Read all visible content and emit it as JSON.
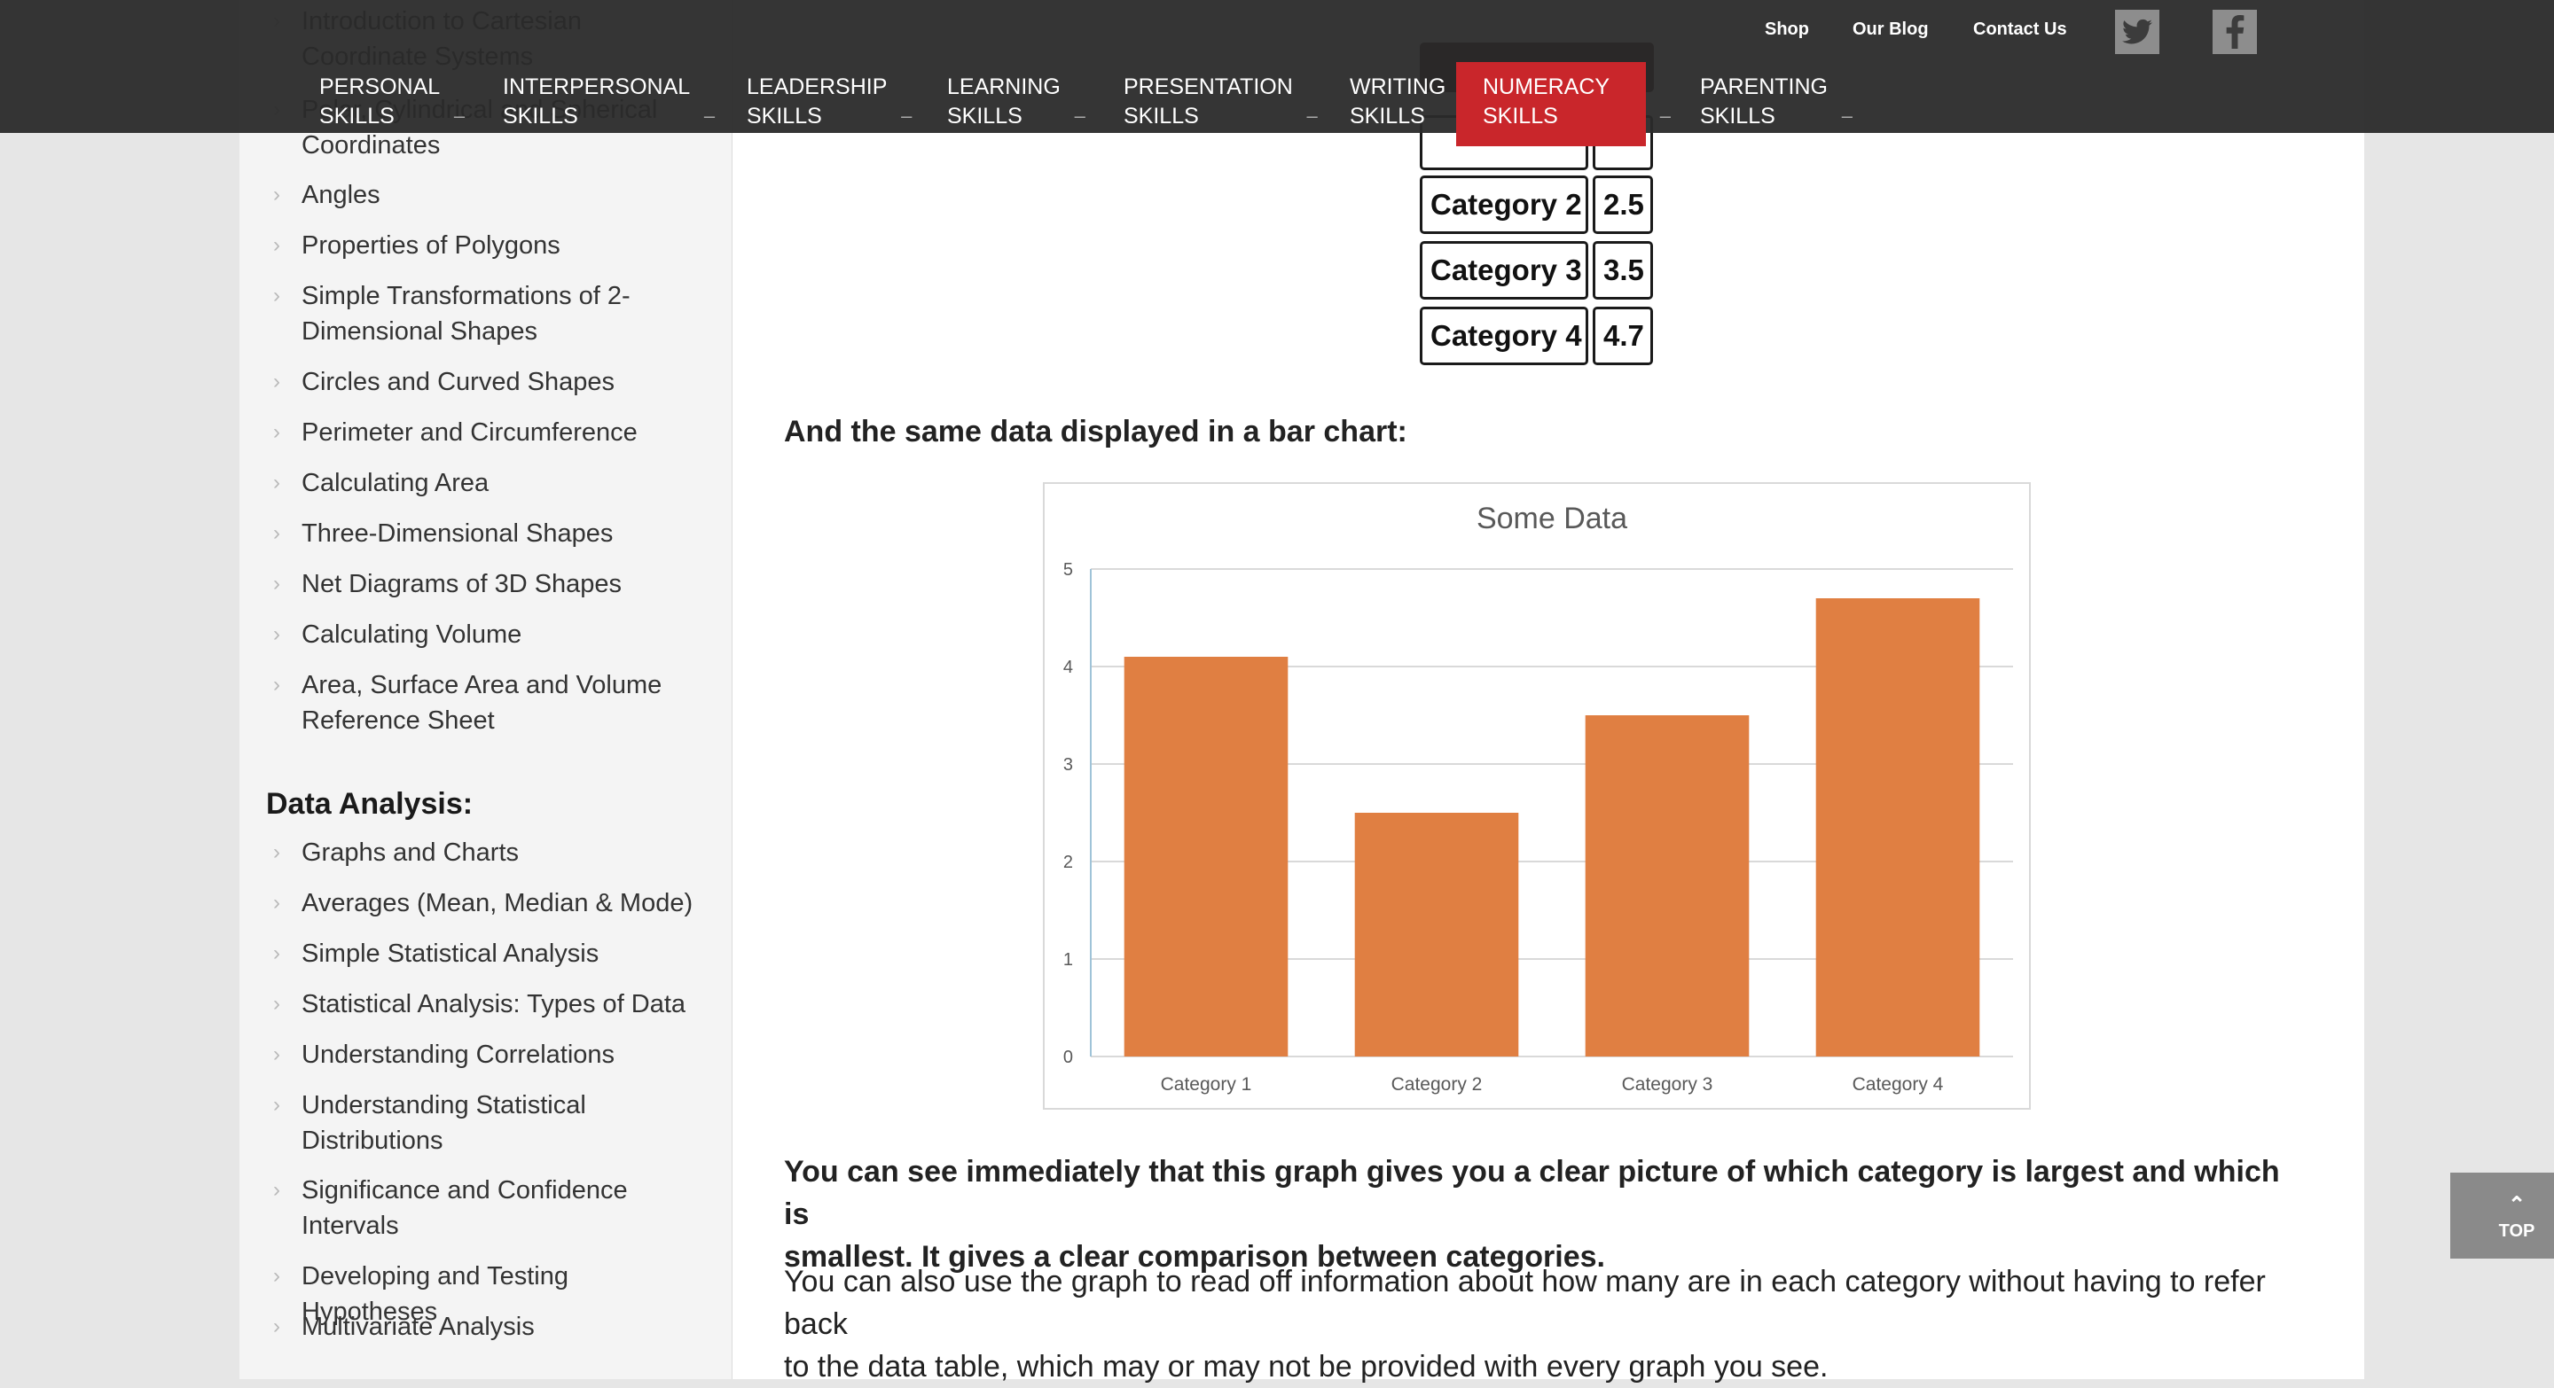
{
  "sidebar": {
    "items_top": [
      "Introduction to Cartesian Coordinate Systems",
      "Polar, Cylindrical and Spherical Coordinates",
      "Angles",
      "Properties of Polygons",
      "Simple Transformations of 2-Dimensional Shapes",
      "Circles and Curved Shapes",
      "Perimeter and Circumference",
      "Calculating Area",
      "Three-Dimensional Shapes",
      "Net Diagrams of 3D Shapes",
      "Calculating Volume",
      "Area, Surface Area and Volume Reference Sheet"
    ],
    "heading": "Data Analysis:",
    "items_bottom": [
      "Graphs and Charts",
      "Averages (Mean, Median & Mode)",
      "Simple Statistical Analysis",
      "Statistical Analysis: Types of Data",
      "Understanding Correlations",
      "Understanding Statistical Distributions",
      "Significance and Confidence Intervals",
      "Developing and Testing Hypotheses",
      "Multivariate Analysis"
    ]
  },
  "topnav": {
    "utility": [
      "Shop",
      "Our Blog",
      "Contact Us"
    ],
    "social": [
      "twitter-icon",
      "facebook-icon"
    ],
    "items": [
      {
        "line1": "PERSONAL",
        "line2": "SKILLS"
      },
      {
        "line1": "INTERPERSONAL",
        "line2": "SKILLS"
      },
      {
        "line1": "LEADERSHIP",
        "line2": "SKILLS"
      },
      {
        "line1": "LEARNING",
        "line2": "SKILLS"
      },
      {
        "line1": "PRESENTATION",
        "line2": "SKILLS"
      },
      {
        "line1": "WRITING",
        "line2": "SKILLS"
      },
      {
        "line1": "NUMERACY",
        "line2": "SKILLS"
      },
      {
        "line1": "PARENTING",
        "line2": "SKILLS"
      }
    ],
    "active_index": 6,
    "active_color": "#c9262b"
  },
  "table": {
    "rows": [
      {
        "label": "Category 2",
        "value": "2.5"
      },
      {
        "label": "Category 3",
        "value": "3.5"
      },
      {
        "label": "Category 4",
        "value": "4.7"
      }
    ]
  },
  "content": {
    "intro": "And the same data displayed in a bar chart:",
    "para1_line1": "You can see immediately that this graph gives you a clear picture of which category is largest and which is",
    "para1_line2": "smallest. It gives a clear comparison between categories.",
    "para2_line1": "You can also use the graph to read off information about how many are in each category without having to refer back",
    "para2_line2": "to the data table, which may or may not be provided with every graph you see."
  },
  "chart_data": {
    "type": "bar",
    "title": "Some Data",
    "categories": [
      "Category 1",
      "Category 2",
      "Category 3",
      "Category 4"
    ],
    "values": [
      4.1,
      2.5,
      3.5,
      4.7
    ],
    "ylim": [
      0,
      5
    ],
    "yticks": [
      0,
      1,
      2,
      3,
      4,
      5
    ],
    "xlabel": "",
    "ylabel": "",
    "grid": true,
    "bar_color": "#e07f42"
  },
  "top_button": {
    "label": "TOP"
  }
}
